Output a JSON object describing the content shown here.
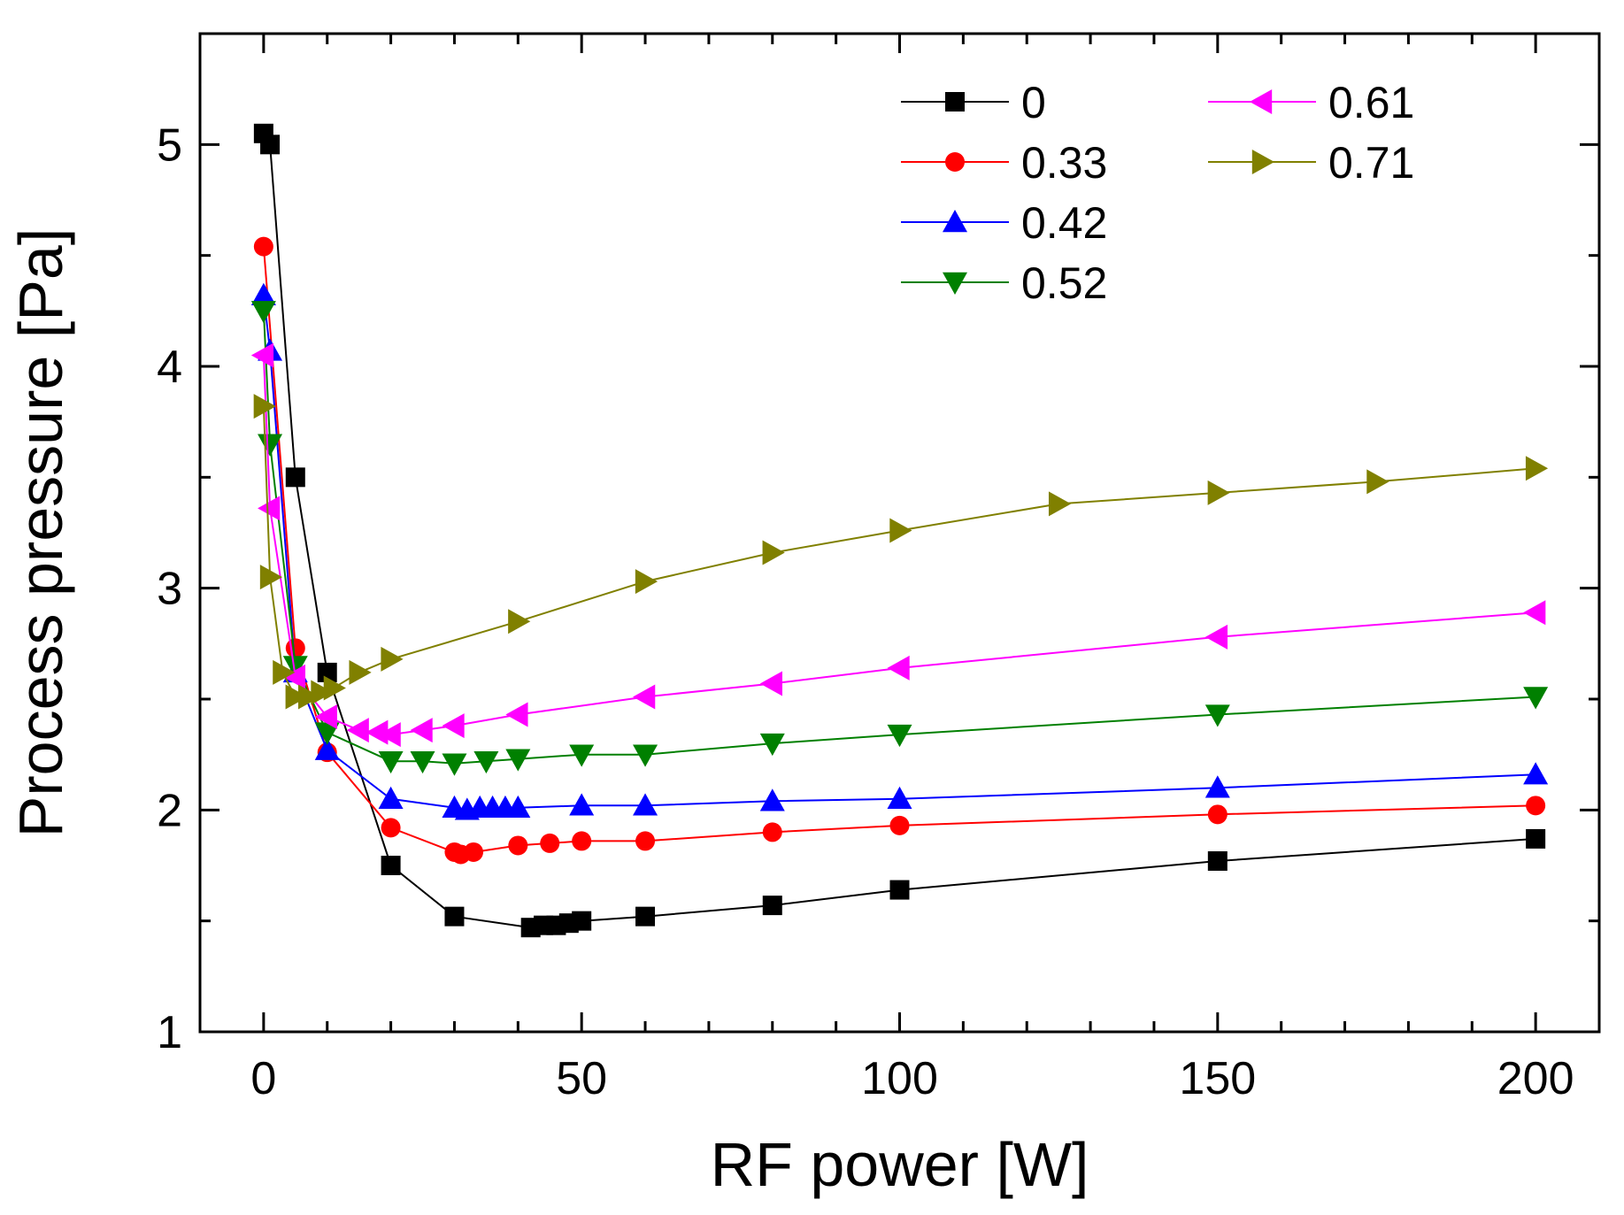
{
  "chart_data": {
    "type": "line",
    "title": "",
    "xlabel": "RF power [W]",
    "ylabel": "Process pressure [Pa]",
    "xlim": [
      -10,
      210
    ],
    "ylim": [
      1,
      5.5
    ],
    "xticks": [
      0,
      50,
      100,
      150,
      200
    ],
    "xtick_labels": [
      "0",
      "50",
      "100",
      "150",
      "200"
    ],
    "yticks": [
      1,
      2,
      3,
      4,
      5
    ],
    "ytick_labels": [
      "1",
      "2",
      "3",
      "4",
      "5"
    ],
    "grid": false,
    "legend_position": "top-right",
    "series": [
      {
        "name": "0",
        "color": "#000000",
        "marker": "square",
        "x": [
          0,
          1,
          5,
          10,
          20,
          30,
          42,
          44,
          46,
          48,
          50,
          60,
          80,
          100,
          150,
          200
        ],
        "y": [
          5.05,
          5.0,
          3.5,
          2.62,
          1.75,
          1.52,
          1.47,
          1.48,
          1.48,
          1.49,
          1.5,
          1.52,
          1.57,
          1.64,
          1.77,
          1.87
        ]
      },
      {
        "name": "0.33",
        "color": "#ff0000",
        "marker": "circle",
        "x": [
          0,
          5,
          10,
          20,
          30,
          31,
          33,
          40,
          45,
          50,
          60,
          80,
          100,
          150,
          200
        ],
        "y": [
          4.54,
          2.73,
          2.26,
          1.92,
          1.81,
          1.8,
          1.81,
          1.84,
          1.85,
          1.86,
          1.86,
          1.9,
          1.93,
          1.98,
          2.02
        ]
      },
      {
        "name": "0.42",
        "color": "#0000ff",
        "marker": "triangle-up",
        "x": [
          0,
          1,
          5,
          10,
          20,
          30,
          32,
          34,
          36,
          38,
          40,
          50,
          60,
          80,
          100,
          150,
          200
        ],
        "y": [
          4.32,
          4.07,
          2.62,
          2.27,
          2.05,
          2.01,
          2.0,
          2.01,
          2.01,
          2.01,
          2.01,
          2.02,
          2.02,
          2.04,
          2.05,
          2.1,
          2.16
        ]
      },
      {
        "name": "0.52",
        "color": "#008000",
        "marker": "triangle-down",
        "x": [
          0,
          1,
          5,
          10,
          20,
          25,
          30,
          35,
          40,
          50,
          60,
          80,
          100,
          150,
          200
        ],
        "y": [
          4.25,
          3.65,
          2.65,
          2.35,
          2.22,
          2.22,
          2.21,
          2.22,
          2.23,
          2.25,
          2.25,
          2.3,
          2.34,
          2.43,
          2.51
        ]
      },
      {
        "name": "0.61",
        "color": "#ff00ff",
        "marker": "triangle-left",
        "x": [
          0,
          1,
          5,
          10,
          15,
          18,
          20,
          25,
          30,
          40,
          60,
          80,
          100,
          150,
          200
        ],
        "y": [
          4.05,
          3.36,
          2.6,
          2.42,
          2.36,
          2.35,
          2.34,
          2.36,
          2.38,
          2.43,
          2.51,
          2.57,
          2.64,
          2.78,
          2.89
        ]
      },
      {
        "name": "0.71",
        "color": "#808000",
        "marker": "triangle-right",
        "x": [
          0,
          1,
          3,
          5,
          7,
          9,
          11,
          15,
          20,
          40,
          60,
          80,
          100,
          125,
          150,
          175,
          200
        ],
        "y": [
          3.82,
          3.05,
          2.62,
          2.51,
          2.51,
          2.53,
          2.55,
          2.62,
          2.68,
          2.85,
          3.03,
          3.16,
          3.26,
          3.38,
          3.43,
          3.48,
          3.54
        ]
      }
    ]
  }
}
